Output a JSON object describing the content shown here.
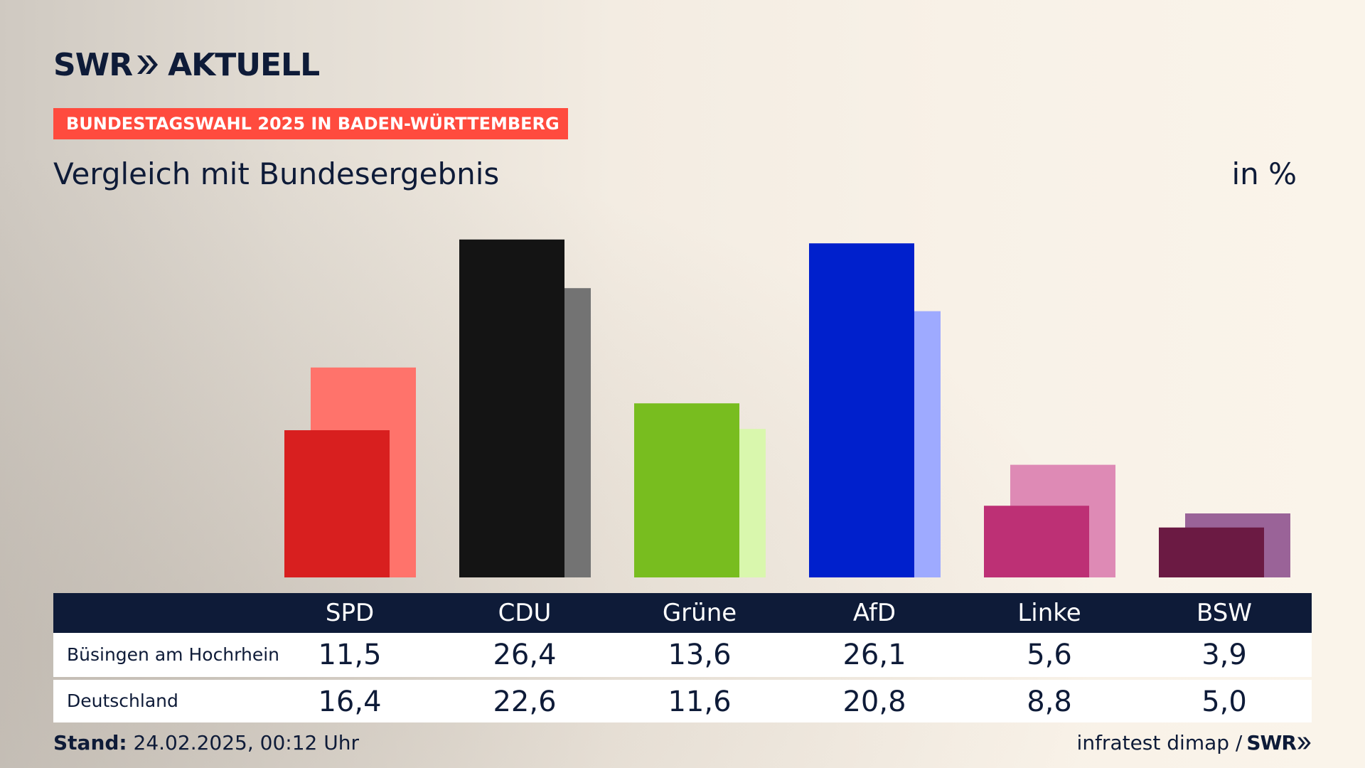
{
  "header": {
    "logo_text_left": "SWR",
    "logo_text_right": "AKTUELL",
    "tag": "BUNDESTAGSWAHL 2025 IN BADEN-WÜRTTEMBERG",
    "subtitle": "Vergleich mit Bundesergebnis",
    "unit": "in %"
  },
  "chart_data": {
    "type": "bar",
    "title": "Vergleich mit Bundesergebnis",
    "ylabel": "in %",
    "xlabel": "",
    "ylim": [
      0,
      28
    ],
    "categories": [
      "SPD",
      "CDU",
      "Grüne",
      "AfD",
      "Linke",
      "BSW"
    ],
    "series": [
      {
        "name": "Büsingen am Hochrhein",
        "values": [
          11.5,
          26.4,
          13.6,
          26.1,
          5.6,
          3.9
        ],
        "labels": [
          "11,5",
          "26,4",
          "13,6",
          "26,1",
          "5,6",
          "3,9"
        ],
        "colors": [
          "#d81f1f",
          "#141414",
          "#78bd1f",
          "#0020cc",
          "#bd3075",
          "#6b1a43"
        ]
      },
      {
        "name": "Deutschland",
        "values": [
          16.4,
          22.6,
          11.6,
          20.8,
          8.8,
          5.0
        ],
        "labels": [
          "16,4",
          "22,6",
          "11,6",
          "20,8",
          "8,8",
          "5,0"
        ],
        "colors": [
          "#ff736b",
          "#737373",
          "#d9f7ad",
          "#9eaaff",
          "#de8ab5",
          "#9a6398"
        ]
      }
    ]
  },
  "footer": {
    "stand_label": "Stand:",
    "stand_value": "24.02.2025, 00:12 Uhr",
    "source": "infratest dimap /",
    "brand": "SWR"
  }
}
